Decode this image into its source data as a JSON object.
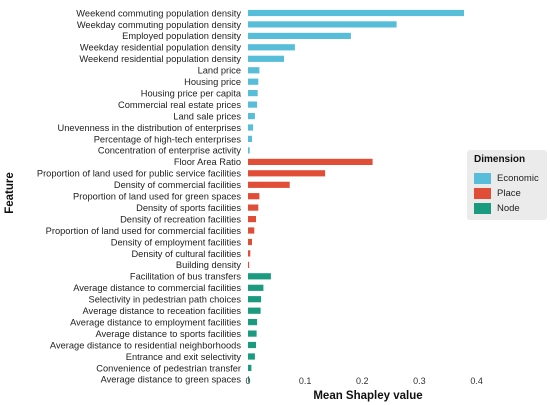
{
  "chart_data": {
    "type": "bar",
    "orientation": "horizontal",
    "title": "",
    "xlabel": "Mean Shapley value",
    "ylabel": "Feature",
    "xlim": [
      0,
      0.42
    ],
    "xticks": [
      "0",
      "0.1",
      "0.2",
      "0.3",
      "0.4"
    ],
    "grid": false,
    "legend": {
      "title": "Dimension",
      "position": "right",
      "entries": [
        {
          "label": "Economic",
          "color": "#57bdd9"
        },
        {
          "label": "Place",
          "color": "#e04e37"
        },
        {
          "label": "Node",
          "color": "#1a9a7f"
        }
      ]
    },
    "series": [
      {
        "name": "Economic",
        "color": "#57bdd9",
        "points": [
          {
            "feature": "Weekend commuting population density",
            "value": 0.378
          },
          {
            "feature": "Weekday commuting population density",
            "value": 0.26
          },
          {
            "feature": "Employed population density",
            "value": 0.18
          },
          {
            "feature": "Weekday residential population density",
            "value": 0.082
          },
          {
            "feature": "Weekend residential population density",
            "value": 0.063
          },
          {
            "feature": "Land price",
            "value": 0.02
          },
          {
            "feature": "Housing price",
            "value": 0.018
          },
          {
            "feature": "Housing price per capita",
            "value": 0.017
          },
          {
            "feature": "Commercial real estate prices",
            "value": 0.016
          },
          {
            "feature": "Land sale prices",
            "value": 0.012
          },
          {
            "feature": "Unevenness in the distribution of enterprises",
            "value": 0.009
          },
          {
            "feature": "Percentage of high-tech enterprises",
            "value": 0.007
          },
          {
            "feature": "Concentration of enterprise activity",
            "value": 0.003
          }
        ]
      },
      {
        "name": "Place",
        "color": "#e04e37",
        "points": [
          {
            "feature": "Floor Area Ratio",
            "value": 0.218
          },
          {
            "feature": "Proportion of land used for public service facilities",
            "value": 0.135
          },
          {
            "feature": "Density of commercial facilities",
            "value": 0.073
          },
          {
            "feature": "Proportion of land used for green spaces",
            "value": 0.02
          },
          {
            "feature": "Density of sports facilities",
            "value": 0.018
          },
          {
            "feature": "Density of recreation facilities",
            "value": 0.014
          },
          {
            "feature": "Proportion of land used for commercial facilities",
            "value": 0.011
          },
          {
            "feature": "Density of employment facilities",
            "value": 0.007
          },
          {
            "feature": "Density of cultural facilities",
            "value": 0.004
          },
          {
            "feature": "Building density",
            "value": 0.002
          }
        ]
      },
      {
        "name": "Node",
        "color": "#1a9a7f",
        "points": [
          {
            "feature": "Facilitation of bus transfers",
            "value": 0.04
          },
          {
            "feature": "Average distance to commercial facilities",
            "value": 0.027
          },
          {
            "feature": "Selectivity in pedestrian path choices",
            "value": 0.023
          },
          {
            "feature": "Average distance to receation facilities",
            "value": 0.022
          },
          {
            "feature": "Average distance to employment facilities",
            "value": 0.016
          },
          {
            "feature": "Average distance to sports facilities",
            "value": 0.015
          },
          {
            "feature": "Average distance to residential neighborhoods",
            "value": 0.014
          },
          {
            "feature": "Entrance and exit selectivity",
            "value": 0.012
          },
          {
            "feature": "Convenience of pedestrian transfer",
            "value": 0.006
          },
          {
            "feature": "Average distance to green spaces",
            "value": 0.002
          }
        ]
      }
    ]
  }
}
